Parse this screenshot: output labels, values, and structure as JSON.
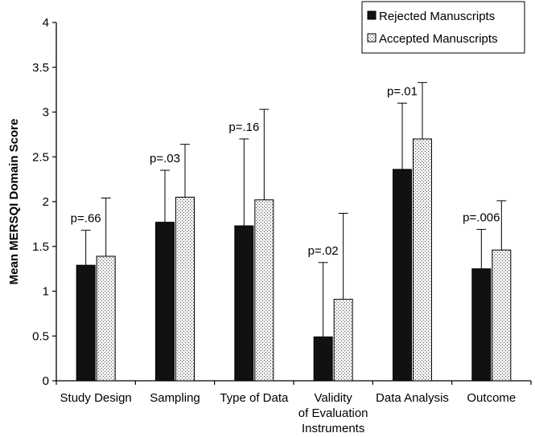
{
  "chart_data": {
    "type": "bar",
    "ylabel": "Mean MERSQI Domain Score",
    "ylim": [
      0,
      4
    ],
    "yticks": [
      0,
      0.5,
      1,
      1.5,
      2,
      2.5,
      3,
      3.5,
      4
    ],
    "ytick_labels": [
      "0",
      "0.5",
      "1",
      "1.5",
      "2",
      "2.5",
      "3",
      "3.5",
      "4"
    ],
    "categories": [
      [
        "Study Design"
      ],
      [
        "Sampling"
      ],
      [
        "Type of Data"
      ],
      [
        "Validity",
        "of Evaluation",
        "Instruments"
      ],
      [
        "Data Analysis"
      ],
      [
        "Outcome"
      ]
    ],
    "series": [
      {
        "name": "Rejected Manuscripts",
        "color": "#111111",
        "values": [
          1.29,
          1.77,
          1.73,
          0.49,
          2.36,
          1.25
        ],
        "errors": [
          0.39,
          0.58,
          0.97,
          0.83,
          0.74,
          0.44
        ]
      },
      {
        "name": "Accepted Manuscripts",
        "color": "#e8e8e8",
        "values": [
          1.39,
          2.05,
          2.02,
          0.91,
          2.7,
          1.46
        ],
        "errors": [
          0.65,
          0.59,
          1.01,
          0.96,
          0.63,
          0.55
        ]
      }
    ],
    "annotations": [
      "p=.66",
      "p=.03",
      "p=.16",
      "p=.02",
      "p=.01",
      "p=.006"
    ],
    "legend_position": "top-right",
    "grid": false
  }
}
